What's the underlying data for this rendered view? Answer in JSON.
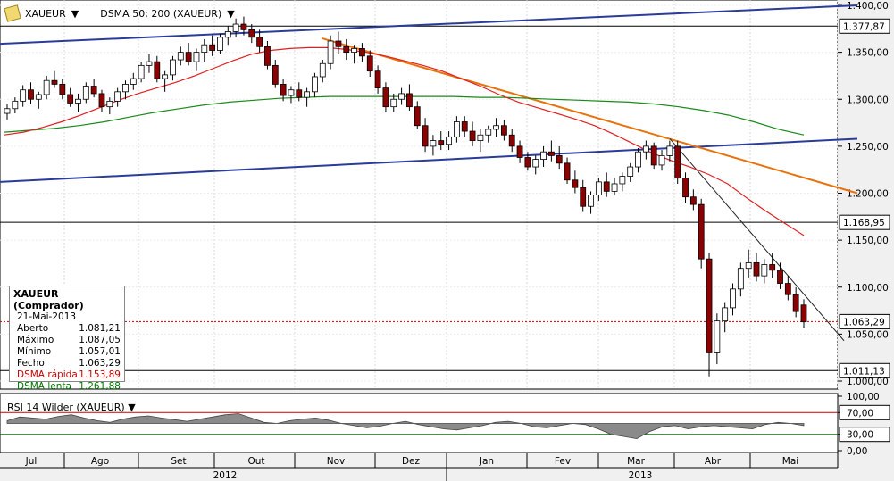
{
  "toolbar": {
    "symbol": "XAUEUR",
    "indicator": "DSMA 50; 200 (XAUEUR)"
  },
  "info": {
    "title": "XAUEUR (Comprador)",
    "date": "21-Mai-2013",
    "rows": [
      {
        "label": "Aberto",
        "value": "1.081,21",
        "color": "#000000"
      },
      {
        "label": "Máximo",
        "value": "1.087,05",
        "color": "#000000"
      },
      {
        "label": "Mínimo",
        "value": "1.057,01",
        "color": "#000000"
      },
      {
        "label": "Fecho",
        "value": "1.063,29",
        "color": "#000000"
      },
      {
        "label": "DSMA rápida",
        "value": "1.153,89",
        "color": "#cc0000"
      },
      {
        "label": "DSMA lenta",
        "value": "1.261,88",
        "color": "#007700"
      }
    ]
  },
  "rsi_title": "RSI 14 Wilder (XAUEUR)",
  "chart_data": {
    "type": "line",
    "price_axis": {
      "min": 1000,
      "max": 1400,
      "ticks": [
        "1.000,00",
        "1.050,00",
        "1.100,00",
        "1.150,00",
        "1.200,00",
        "1.250,00",
        "1.300,00",
        "1.350,00",
        "1.400,00"
      ]
    },
    "price_markers": [
      {
        "value": 1377.87,
        "label": "1.377,87"
      },
      {
        "value": 1168.95,
        "label": "1.168,95"
      },
      {
        "value": 1063.29,
        "label": "1.063,29"
      },
      {
        "value": 1011.13,
        "label": "1.011,13"
      }
    ],
    "rsi_axis": {
      "ticks": [
        "100,00",
        "70,00",
        "30,00",
        "0,00"
      ]
    },
    "months": [
      "Jul",
      "Ago",
      "Set",
      "Out",
      "Nov",
      "Dez",
      "Jan",
      "Fev",
      "Mar",
      "Abr",
      "Mai"
    ],
    "years": [
      "2012",
      "2013"
    ],
    "colors": {
      "candle_up": "#ffffff",
      "candle_down": "#8b0000",
      "fast_ma": "#e02020",
      "slow_ma": "#1a8a1a",
      "trend_blue": "#2a3c9a",
      "trend_orange": "#e8720c"
    },
    "candles": [
      [
        1285,
        1295,
        1278,
        1290
      ],
      [
        1290,
        1302,
        1285,
        1298
      ],
      [
        1298,
        1315,
        1292,
        1310
      ],
      [
        1310,
        1318,
        1295,
        1300
      ],
      [
        1300,
        1308,
        1290,
        1305
      ],
      [
        1305,
        1325,
        1300,
        1320
      ],
      [
        1320,
        1330,
        1312,
        1316
      ],
      [
        1316,
        1322,
        1300,
        1305
      ],
      [
        1305,
        1312,
        1292,
        1296
      ],
      [
        1296,
        1306,
        1286,
        1300
      ],
      [
        1300,
        1318,
        1296,
        1314
      ],
      [
        1314,
        1322,
        1302,
        1306
      ],
      [
        1306,
        1310,
        1286,
        1292
      ],
      [
        1292,
        1302,
        1284,
        1298
      ],
      [
        1298,
        1312,
        1292,
        1308
      ],
      [
        1308,
        1320,
        1300,
        1316
      ],
      [
        1316,
        1328,
        1310,
        1322
      ],
      [
        1322,
        1340,
        1318,
        1336
      ],
      [
        1336,
        1348,
        1328,
        1340
      ],
      [
        1340,
        1346,
        1318,
        1322
      ],
      [
        1322,
        1330,
        1308,
        1326
      ],
      [
        1326,
        1346,
        1320,
        1342
      ],
      [
        1342,
        1356,
        1336,
        1350
      ],
      [
        1350,
        1360,
        1336,
        1340
      ],
      [
        1340,
        1354,
        1330,
        1350
      ],
      [
        1350,
        1364,
        1340,
        1358
      ],
      [
        1358,
        1368,
        1346,
        1352
      ],
      [
        1352,
        1370,
        1348,
        1366
      ],
      [
        1366,
        1378,
        1358,
        1372
      ],
      [
        1372,
        1386,
        1366,
        1380
      ],
      [
        1380,
        1388,
        1368,
        1374
      ],
      [
        1374,
        1380,
        1360,
        1366
      ],
      [
        1366,
        1374,
        1350,
        1356
      ],
      [
        1356,
        1362,
        1332,
        1336
      ],
      [
        1336,
        1342,
        1312,
        1316
      ],
      [
        1316,
        1322,
        1298,
        1304
      ],
      [
        1304,
        1314,
        1296,
        1310
      ],
      [
        1310,
        1318,
        1298,
        1302
      ],
      [
        1302,
        1312,
        1292,
        1308
      ],
      [
        1308,
        1328,
        1302,
        1324
      ],
      [
        1324,
        1342,
        1318,
        1338
      ],
      [
        1338,
        1368,
        1332,
        1362
      ],
      [
        1362,
        1372,
        1348,
        1356
      ],
      [
        1356,
        1364,
        1342,
        1350
      ],
      [
        1350,
        1358,
        1338,
        1354
      ],
      [
        1354,
        1360,
        1340,
        1346
      ],
      [
        1346,
        1352,
        1324,
        1330
      ],
      [
        1330,
        1336,
        1306,
        1312
      ],
      [
        1312,
        1318,
        1286,
        1292
      ],
      [
        1292,
        1306,
        1286,
        1300
      ],
      [
        1300,
        1312,
        1294,
        1306
      ],
      [
        1306,
        1316,
        1288,
        1292
      ],
      [
        1292,
        1298,
        1268,
        1272
      ],
      [
        1272,
        1280,
        1244,
        1250
      ],
      [
        1250,
        1262,
        1240,
        1256
      ],
      [
        1256,
        1266,
        1246,
        1252
      ],
      [
        1252,
        1266,
        1246,
        1260
      ],
      [
        1260,
        1282,
        1254,
        1276
      ],
      [
        1276,
        1282,
        1260,
        1266
      ],
      [
        1266,
        1276,
        1250,
        1256
      ],
      [
        1256,
        1268,
        1244,
        1262
      ],
      [
        1262,
        1272,
        1254,
        1268
      ],
      [
        1268,
        1280,
        1260,
        1272
      ],
      [
        1272,
        1278,
        1256,
        1262
      ],
      [
        1262,
        1268,
        1244,
        1250
      ],
      [
        1250,
        1256,
        1232,
        1238
      ],
      [
        1238,
        1244,
        1224,
        1228
      ],
      [
        1228,
        1240,
        1220,
        1236
      ],
      [
        1236,
        1250,
        1228,
        1244
      ],
      [
        1244,
        1256,
        1234,
        1240
      ],
      [
        1240,
        1250,
        1226,
        1232
      ],
      [
        1232,
        1238,
        1210,
        1214
      ],
      [
        1214,
        1224,
        1200,
        1206
      ],
      [
        1206,
        1214,
        1180,
        1186
      ],
      [
        1186,
        1202,
        1178,
        1198
      ],
      [
        1198,
        1216,
        1192,
        1212
      ],
      [
        1212,
        1222,
        1196,
        1202
      ],
      [
        1202,
        1216,
        1198,
        1210
      ],
      [
        1210,
        1222,
        1202,
        1218
      ],
      [
        1218,
        1232,
        1212,
        1228
      ],
      [
        1228,
        1248,
        1222,
        1244
      ],
      [
        1244,
        1256,
        1236,
        1250
      ],
      [
        1250,
        1254,
        1226,
        1230
      ],
      [
        1230,
        1246,
        1224,
        1240
      ],
      [
        1240,
        1256,
        1234,
        1250
      ],
      [
        1250,
        1256,
        1210,
        1216
      ],
      [
        1216,
        1222,
        1190,
        1196
      ],
      [
        1196,
        1204,
        1182,
        1188
      ],
      [
        1188,
        1194,
        1120,
        1130
      ],
      [
        1130,
        1136,
        1005,
        1030
      ],
      [
        1030,
        1072,
        1018,
        1064
      ],
      [
        1064,
        1084,
        1052,
        1078
      ],
      [
        1078,
        1104,
        1070,
        1098
      ],
      [
        1098,
        1126,
        1090,
        1120
      ],
      [
        1120,
        1140,
        1110,
        1126
      ],
      [
        1126,
        1136,
        1106,
        1112
      ],
      [
        1112,
        1130,
        1104,
        1124
      ],
      [
        1124,
        1136,
        1110,
        1118
      ],
      [
        1118,
        1126,
        1098,
        1104
      ],
      [
        1104,
        1112,
        1086,
        1092
      ],
      [
        1092,
        1100,
        1068,
        1074
      ],
      [
        1081,
        1087,
        1057,
        1063
      ]
    ],
    "fast_ma": [
      1262,
      1265,
      1270,
      1276,
      1283,
      1291,
      1299,
      1306,
      1312,
      1318,
      1325,
      1333,
      1341,
      1348,
      1352,
      1354,
      1355,
      1355,
      1353,
      1350,
      1346,
      1341,
      1336,
      1330,
      1322,
      1314,
      1305,
      1297,
      1291,
      1285,
      1279,
      1272,
      1263,
      1253,
      1243,
      1235,
      1228,
      1220,
      1210,
      1195,
      1181,
      1168,
      1155
    ],
    "slow_ma": [
      1265,
      1267,
      1269,
      1272,
      1276,
      1281,
      1286,
      1290,
      1294,
      1297,
      1299,
      1301,
      1302,
      1303,
      1303,
      1303,
      1303,
      1303,
      1303,
      1302,
      1302,
      1301,
      1300,
      1299,
      1298,
      1297,
      1295,
      1292,
      1288,
      1283,
      1276,
      1268,
      1262
    ],
    "trendlines": [
      {
        "color": "blue",
        "points": [
          [
            0,
            1359
          ],
          [
            960,
            1400
          ]
        ]
      },
      {
        "color": "blue",
        "points": [
          [
            0,
            1212
          ],
          [
            960,
            1258
          ]
        ]
      },
      {
        "color": "orange",
        "points": [
          [
            360,
            1365
          ],
          [
            960,
            1200
          ]
        ]
      },
      {
        "color": "black",
        "points": [
          [
            750,
            1258
          ],
          [
            945,
            1043
          ]
        ]
      }
    ],
    "rsi": [
      55,
      62,
      60,
      58,
      63,
      66,
      60,
      55,
      52,
      58,
      62,
      64,
      60,
      57,
      54,
      58,
      62,
      66,
      68,
      60,
      52,
      50,
      55,
      58,
      60,
      56,
      50,
      46,
      42,
      45,
      50,
      54,
      48,
      44,
      40,
      38,
      42,
      46,
      52,
      54,
      50,
      44,
      42,
      46,
      50,
      48,
      40,
      30,
      26,
      22,
      35,
      44,
      46,
      40,
      44,
      46,
      44,
      42,
      40,
      48,
      52,
      50,
      46
    ]
  }
}
